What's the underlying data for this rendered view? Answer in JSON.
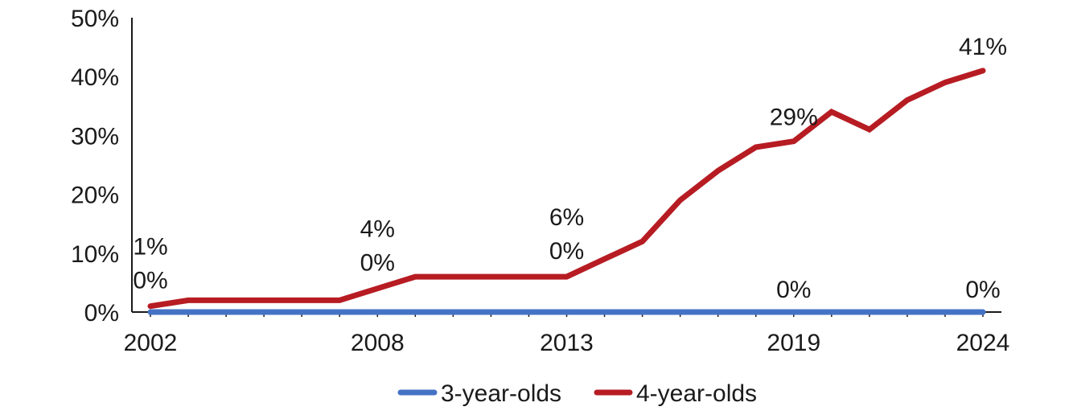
{
  "chart_data": {
    "type": "line",
    "title": "",
    "xlabel": "",
    "ylabel": "",
    "x": [
      2002,
      2003,
      2004,
      2005,
      2006,
      2007,
      2008,
      2009,
      2010,
      2011,
      2012,
      2013,
      2014,
      2015,
      2016,
      2017,
      2018,
      2019,
      2020,
      2021,
      2022,
      2023,
      2024
    ],
    "x_tick_labels": [
      "2002",
      "2008",
      "2013",
      "2019",
      "2024"
    ],
    "y_tick_labels": [
      "0%",
      "10%",
      "20%",
      "30%",
      "40%",
      "50%"
    ],
    "ylim": [
      0,
      50
    ],
    "grid": false,
    "legend_position": "bottom",
    "series": [
      {
        "name": "3-year-olds",
        "color": "#4472C4",
        "values": [
          0,
          0,
          0,
          0,
          0,
          0,
          0,
          0,
          0,
          0,
          0,
          0,
          0,
          0,
          0,
          0,
          0,
          0,
          0,
          0,
          0,
          0,
          0
        ]
      },
      {
        "name": "4-year-olds",
        "color": "#B71C23",
        "values": [
          1,
          2,
          2,
          2,
          2,
          2,
          4,
          6,
          6,
          6,
          6,
          6,
          9,
          12,
          19,
          24,
          28,
          29,
          34,
          31,
          36,
          39,
          41
        ]
      }
    ],
    "data_labels": [
      {
        "series": "4-year-olds",
        "year": 2002,
        "text": "1%"
      },
      {
        "series": "3-year-olds",
        "year": 2002,
        "text": "0%"
      },
      {
        "series": "4-year-olds",
        "year": 2008,
        "text": "4%"
      },
      {
        "series": "3-year-olds",
        "year": 2008,
        "text": "0%"
      },
      {
        "series": "4-year-olds",
        "year": 2013,
        "text": "6%"
      },
      {
        "series": "3-year-olds",
        "year": 2013,
        "text": "0%"
      },
      {
        "series": "4-year-olds",
        "year": 2019,
        "text": "29%"
      },
      {
        "series": "3-year-olds",
        "year": 2019,
        "text": "0%"
      },
      {
        "series": "4-year-olds",
        "year": 2024,
        "text": "41%"
      },
      {
        "series": "3-year-olds",
        "year": 2024,
        "text": "0%"
      }
    ]
  }
}
